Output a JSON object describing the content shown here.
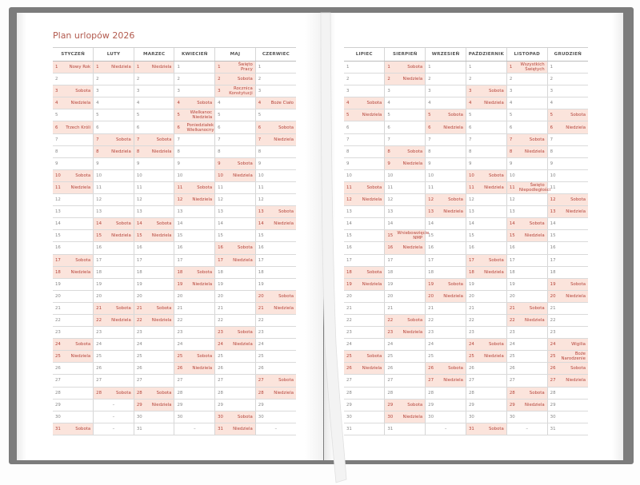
{
  "title": "Plan urlopów 2026",
  "empty_mark": "–",
  "colors": {
    "highlight": "#fbe4dc",
    "accent_text": "#b5443a",
    "cover": "#7c7c7c"
  },
  "left_page": {
    "months": [
      {
        "name": "STYCZEŃ",
        "days": 31,
        "marks": {
          "1": "Nowy Rok",
          "3": "Sobota",
          "4": "Niedziela",
          "6": "Trzech Króli",
          "10": "Sobota",
          "11": "Niedziela",
          "17": "Sobota",
          "18": "Niedziela",
          "24": "Sobota",
          "25": "Niedziela",
          "31": "Sobota"
        }
      },
      {
        "name": "LUTY",
        "days": 28,
        "marks": {
          "1": "Niedziela",
          "7": "Sobota",
          "8": "Niedziela",
          "14": "Sobota",
          "15": "Niedziela",
          "21": "Sobota",
          "22": "Niedziela",
          "28": "Sobota"
        }
      },
      {
        "name": "MARZEC",
        "days": 31,
        "marks": {
          "1": "Niedziela",
          "7": "Sobota",
          "8": "Niedziela",
          "14": "Sobota",
          "15": "Niedziela",
          "21": "Sobota",
          "22": "Niedziela",
          "28": "Sobota",
          "29": "Niedziela"
        }
      },
      {
        "name": "KWIECIEŃ",
        "days": 30,
        "marks": {
          "4": "Sobota",
          "5": "Wielkanoc Niedziela",
          "6": "Poniedziałek Wielkanocny",
          "11": "Sobota",
          "12": "Niedziela",
          "18": "Sobota",
          "19": "Niedziela",
          "25": "Sobota",
          "26": "Niedziela"
        }
      },
      {
        "name": "MAJ",
        "days": 31,
        "marks": {
          "1": "Święto Pracy",
          "2": "Sobota",
          "3": "Rocznica Konstytucji",
          "9": "Sobota",
          "10": "Niedziela",
          "16": "Sobota",
          "17": "Niedziela",
          "23": "Sobota",
          "24": "Niedziela",
          "30": "Sobota",
          "31": "Niedziela"
        }
      },
      {
        "name": "CZERWIEC",
        "days": 30,
        "marks": {
          "4": "Boże Ciało",
          "6": "Sobota",
          "7": "Niedziela",
          "13": "Sobota",
          "14": "Niedziela",
          "20": "Sobota",
          "21": "Niedziela",
          "27": "Sobota",
          "28": "Niedziela"
        }
      }
    ]
  },
  "right_page": {
    "months": [
      {
        "name": "LIPIEC",
        "days": 31,
        "marks": {
          "4": "Sobota",
          "5": "Niedziela",
          "11": "Sobota",
          "12": "Niedziela",
          "18": "Sobota",
          "19": "Niedziela",
          "25": "Sobota",
          "26": "Niedziela"
        }
      },
      {
        "name": "SIERPIEŃ",
        "days": 31,
        "marks": {
          "1": "Sobota",
          "2": "Niedziela",
          "8": "Sobota",
          "9": "Niedziela",
          "15": "Wniebowzięcie NMP",
          "16": "Niedziela",
          "22": "Sobota",
          "23": "Niedziela",
          "29": "Sobota",
          "30": "Niedziela"
        }
      },
      {
        "name": "WRZESIEŃ",
        "days": 30,
        "marks": {
          "5": "Sobota",
          "6": "Niedziela",
          "12": "Sobota",
          "13": "Niedziela",
          "19": "Sobota",
          "20": "Niedziela",
          "26": "Sobota",
          "27": "Niedziela"
        }
      },
      {
        "name": "PAŹDZIERNIK",
        "days": 31,
        "marks": {
          "3": "Sobota",
          "4": "Niedziela",
          "10": "Sobota",
          "11": "Niedziela",
          "17": "Sobota",
          "18": "Niedziela",
          "24": "Sobota",
          "25": "Niedziela",
          "31": "Sobota"
        }
      },
      {
        "name": "LISTOPAD",
        "days": 30,
        "marks": {
          "1": "Wszystkich Świętych",
          "7": "Sobota",
          "8": "Niedziela",
          "11": "Święto Niepodległości",
          "14": "Sobota",
          "15": "Niedziela",
          "21": "Sobota",
          "22": "Niedziela",
          "28": "Sobota",
          "29": "Niedziela"
        }
      },
      {
        "name": "GRUDZIEŃ",
        "days": 31,
        "marks": {
          "5": "Sobota",
          "6": "Niedziela",
          "12": "Sobota",
          "13": "Niedziela",
          "19": "Sobota",
          "20": "Niedziela",
          "24": "Wigilia",
          "25": "Boże Narodzenie",
          "26": "Sobota",
          "27": "Niedziela"
        }
      }
    ]
  }
}
